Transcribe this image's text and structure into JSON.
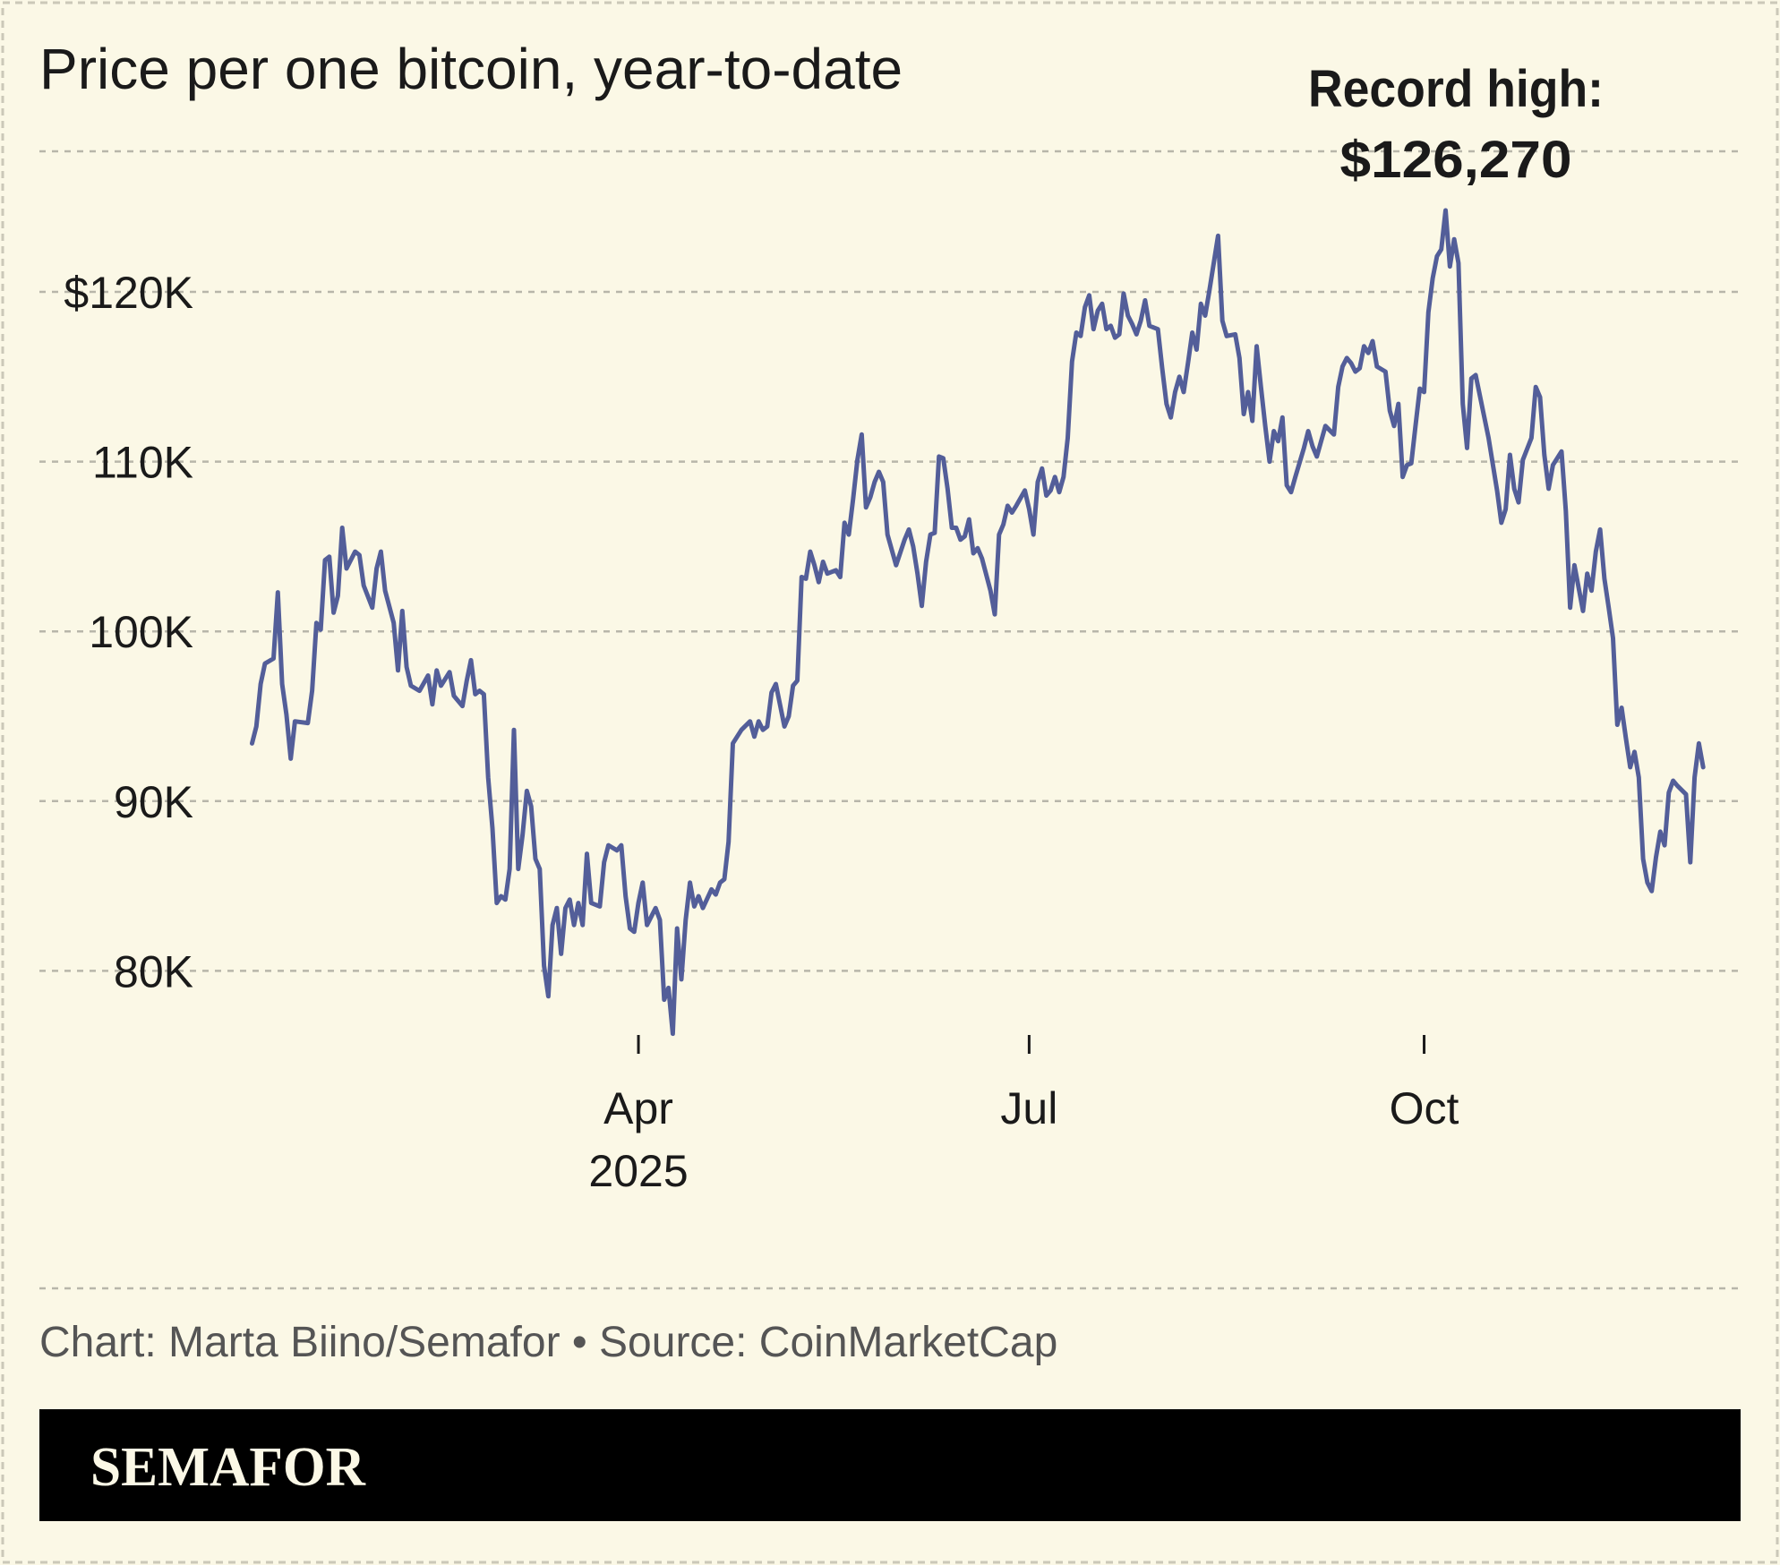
{
  "colors": {
    "background": "#fbf8e6",
    "line": "#535e99",
    "banner": "#000000",
    "logo_text": "#fbf8e6"
  },
  "footer": {
    "source": "Chart: Marta Biino/Semafor • Source: CoinMarketCap",
    "logo": "SEMAFOR"
  },
  "chart_data": {
    "type": "line",
    "title": "Price per one bitcoin, year-to-date",
    "annotation": {
      "line1": "Record high:",
      "line2": "$126,270",
      "date": "2025-10-06"
    },
    "xlabel": "",
    "ylabel": "",
    "grid": true,
    "ylim": [
      76,
      128
    ],
    "y_ticks": [
      {
        "value": 120,
        "label": "$120K"
      },
      {
        "value": 110,
        "label": "110K"
      },
      {
        "value": 100,
        "label": "100K"
      },
      {
        "value": 90,
        "label": "90K"
      },
      {
        "value": 80,
        "label": "80K"
      }
    ],
    "x_ticks": [
      {
        "date": "2025-04-01",
        "label": "Apr",
        "sublabel": "2025"
      },
      {
        "date": "2025-07-01",
        "label": "Jul",
        "sublabel": ""
      },
      {
        "date": "2025-10-01",
        "label": "Oct",
        "sublabel": ""
      }
    ],
    "unit": "thousand USD",
    "points": [
      [
        "2025-01-01",
        93.4
      ],
      [
        "2025-01-02",
        94.4
      ],
      [
        "2025-01-03",
        96.9
      ],
      [
        "2025-01-04",
        98.1
      ],
      [
        "2025-01-06",
        98.4
      ],
      [
        "2025-01-07",
        102.3
      ],
      [
        "2025-01-08",
        96.9
      ],
      [
        "2025-01-09",
        95.1
      ],
      [
        "2025-01-10",
        92.5
      ],
      [
        "2025-01-11",
        94.7
      ],
      [
        "2025-01-14",
        94.6
      ],
      [
        "2025-01-15",
        96.5
      ],
      [
        "2025-01-16",
        100.5
      ],
      [
        "2025-01-17",
        100.1
      ],
      [
        "2025-01-18",
        104.2
      ],
      [
        "2025-01-19",
        104.4
      ],
      [
        "2025-01-20",
        101.1
      ],
      [
        "2025-01-21",
        102.1
      ],
      [
        "2025-01-22",
        106.1
      ],
      [
        "2025-01-23",
        103.7
      ],
      [
        "2025-01-25",
        104.7
      ],
      [
        "2025-01-26",
        104.5
      ],
      [
        "2025-01-27",
        102.7
      ],
      [
        "2025-01-29",
        101.4
      ],
      [
        "2025-01-30",
        103.7
      ],
      [
        "2025-01-31",
        104.7
      ],
      [
        "2025-02-01",
        102.4
      ],
      [
        "2025-02-03",
        100.5
      ],
      [
        "2025-02-04",
        97.7
      ],
      [
        "2025-02-05",
        101.2
      ],
      [
        "2025-02-06",
        97.9
      ],
      [
        "2025-02-07",
        96.8
      ],
      [
        "2025-02-09",
        96.5
      ],
      [
        "2025-02-11",
        97.4
      ],
      [
        "2025-02-12",
        95.7
      ],
      [
        "2025-02-13",
        97.7
      ],
      [
        "2025-02-14",
        96.8
      ],
      [
        "2025-02-16",
        97.6
      ],
      [
        "2025-02-17",
        96.2
      ],
      [
        "2025-02-19",
        95.6
      ],
      [
        "2025-02-20",
        97.1
      ],
      [
        "2025-02-21",
        98.3
      ],
      [
        "2025-02-22",
        96.3
      ],
      [
        "2025-02-23",
        96.5
      ],
      [
        "2025-02-24",
        96.3
      ],
      [
        "2025-02-25",
        91.4
      ],
      [
        "2025-02-26",
        88.4
      ],
      [
        "2025-02-27",
        84.0
      ],
      [
        "2025-02-28",
        84.4
      ],
      [
        "2025-03-01",
        84.2
      ],
      [
        "2025-03-02",
        86.0
      ],
      [
        "2025-03-03",
        94.2
      ],
      [
        "2025-03-04",
        86.0
      ],
      [
        "2025-03-05",
        88.0
      ],
      [
        "2025-03-06",
        90.6
      ],
      [
        "2025-03-07",
        89.7
      ],
      [
        "2025-03-08",
        86.6
      ],
      [
        "2025-03-09",
        86.0
      ],
      [
        "2025-03-10",
        80.3
      ],
      [
        "2025-03-11",
        78.5
      ],
      [
        "2025-03-12",
        82.7
      ],
      [
        "2025-03-13",
        83.7
      ],
      [
        "2025-03-14",
        81.0
      ],
      [
        "2025-03-15",
        83.7
      ],
      [
        "2025-03-16",
        84.2
      ],
      [
        "2025-03-17",
        82.7
      ],
      [
        "2025-03-18",
        84.0
      ],
      [
        "2025-03-19",
        82.7
      ],
      [
        "2025-03-20",
        86.9
      ],
      [
        "2025-03-21",
        84.0
      ],
      [
        "2025-03-23",
        83.8
      ],
      [
        "2025-03-24",
        86.4
      ],
      [
        "2025-03-25",
        87.4
      ],
      [
        "2025-03-27",
        87.1
      ],
      [
        "2025-03-28",
        87.4
      ],
      [
        "2025-03-29",
        84.4
      ],
      [
        "2025-03-30",
        82.5
      ],
      [
        "2025-03-31",
        82.3
      ],
      [
        "2025-04-01",
        84.0
      ],
      [
        "2025-04-02",
        85.2
      ],
      [
        "2025-04-03",
        82.7
      ],
      [
        "2025-04-05",
        83.7
      ],
      [
        "2025-04-06",
        83.0
      ],
      [
        "2025-04-07",
        78.3
      ],
      [
        "2025-04-08",
        79.0
      ],
      [
        "2025-04-09",
        76.3
      ],
      [
        "2025-04-10",
        82.5
      ],
      [
        "2025-04-11",
        79.5
      ],
      [
        "2025-04-12",
        83.0
      ],
      [
        "2025-04-13",
        85.2
      ],
      [
        "2025-04-14",
        83.8
      ],
      [
        "2025-04-15",
        84.4
      ],
      [
        "2025-04-16",
        83.7
      ],
      [
        "2025-04-18",
        84.8
      ],
      [
        "2025-04-19",
        84.5
      ],
      [
        "2025-04-20",
        85.2
      ],
      [
        "2025-04-21",
        85.4
      ],
      [
        "2025-04-22",
        87.6
      ],
      [
        "2025-04-23",
        93.4
      ],
      [
        "2025-04-25",
        94.2
      ],
      [
        "2025-04-27",
        94.7
      ],
      [
        "2025-04-28",
        93.8
      ],
      [
        "2025-04-29",
        94.7
      ],
      [
        "2025-04-30",
        94.2
      ],
      [
        "2025-05-01",
        94.4
      ],
      [
        "2025-05-02",
        96.4
      ],
      [
        "2025-05-03",
        96.9
      ],
      [
        "2025-05-05",
        94.4
      ],
      [
        "2025-05-06",
        95.0
      ],
      [
        "2025-05-07",
        96.8
      ],
      [
        "2025-05-08",
        97.1
      ],
      [
        "2025-05-09",
        103.2
      ],
      [
        "2025-05-10",
        103.1
      ],
      [
        "2025-05-11",
        104.7
      ],
      [
        "2025-05-12",
        103.9
      ],
      [
        "2025-05-13",
        102.9
      ],
      [
        "2025-05-14",
        104.1
      ],
      [
        "2025-05-15",
        103.4
      ],
      [
        "2025-05-17",
        103.6
      ],
      [
        "2025-05-18",
        103.2
      ],
      [
        "2025-05-19",
        106.4
      ],
      [
        "2025-05-20",
        105.7
      ],
      [
        "2025-05-21",
        107.8
      ],
      [
        "2025-05-22",
        110.1
      ],
      [
        "2025-05-23",
        111.6
      ],
      [
        "2025-05-24",
        107.3
      ],
      [
        "2025-05-25",
        107.9
      ],
      [
        "2025-05-26",
        108.8
      ],
      [
        "2025-05-27",
        109.4
      ],
      [
        "2025-05-28",
        108.8
      ],
      [
        "2025-05-29",
        105.7
      ],
      [
        "2025-05-31",
        103.9
      ],
      [
        "2025-06-02",
        105.4
      ],
      [
        "2025-06-03",
        106.0
      ],
      [
        "2025-06-04",
        105.0
      ],
      [
        "2025-06-05",
        103.4
      ],
      [
        "2025-06-06",
        101.5
      ],
      [
        "2025-06-07",
        104.1
      ],
      [
        "2025-06-08",
        105.7
      ],
      [
        "2025-06-09",
        105.8
      ],
      [
        "2025-06-10",
        110.3
      ],
      [
        "2025-06-11",
        110.2
      ],
      [
        "2025-06-12",
        108.4
      ],
      [
        "2025-06-13",
        106.1
      ],
      [
        "2025-06-14",
        106.1
      ],
      [
        "2025-06-15",
        105.4
      ],
      [
        "2025-06-16",
        105.6
      ],
      [
        "2025-06-17",
        106.6
      ],
      [
        "2025-06-18",
        104.6
      ],
      [
        "2025-06-19",
        104.9
      ],
      [
        "2025-06-20",
        104.3
      ],
      [
        "2025-06-22",
        102.4
      ],
      [
        "2025-06-23",
        101.0
      ],
      [
        "2025-06-24",
        105.7
      ],
      [
        "2025-06-25",
        106.3
      ],
      [
        "2025-06-26",
        107.4
      ],
      [
        "2025-06-27",
        107.0
      ],
      [
        "2025-06-28",
        107.4
      ],
      [
        "2025-06-30",
        108.3
      ],
      [
        "2025-07-01",
        107.2
      ],
      [
        "2025-07-02",
        105.7
      ],
      [
        "2025-07-03",
        108.8
      ],
      [
        "2025-07-04",
        109.6
      ],
      [
        "2025-07-05",
        108.0
      ],
      [
        "2025-07-06",
        108.3
      ],
      [
        "2025-07-07",
        109.1
      ],
      [
        "2025-07-08",
        108.2
      ],
      [
        "2025-07-09",
        109.1
      ],
      [
        "2025-07-10",
        111.4
      ],
      [
        "2025-07-11",
        115.9
      ],
      [
        "2025-07-12",
        117.6
      ],
      [
        "2025-07-13",
        117.4
      ],
      [
        "2025-07-14",
        119.1
      ],
      [
        "2025-07-15",
        119.8
      ],
      [
        "2025-07-16",
        117.8
      ],
      [
        "2025-07-17",
        118.9
      ],
      [
        "2025-07-18",
        119.3
      ],
      [
        "2025-07-19",
        117.8
      ],
      [
        "2025-07-20",
        118.0
      ],
      [
        "2025-07-21",
        117.3
      ],
      [
        "2025-07-22",
        117.5
      ],
      [
        "2025-07-23",
        119.9
      ],
      [
        "2025-07-24",
        118.6
      ],
      [
        "2025-07-25",
        118.1
      ],
      [
        "2025-07-26",
        117.5
      ],
      [
        "2025-07-27",
        118.3
      ],
      [
        "2025-07-28",
        119.5
      ],
      [
        "2025-07-29",
        118.0
      ],
      [
        "2025-07-31",
        117.8
      ],
      [
        "2025-08-01",
        115.5
      ],
      [
        "2025-08-02",
        113.4
      ],
      [
        "2025-08-03",
        112.6
      ],
      [
        "2025-08-04",
        114.1
      ],
      [
        "2025-08-05",
        115.0
      ],
      [
        "2025-08-06",
        114.1
      ],
      [
        "2025-08-07",
        115.8
      ],
      [
        "2025-08-08",
        117.6
      ],
      [
        "2025-08-09",
        116.6
      ],
      [
        "2025-08-10",
        119.3
      ],
      [
        "2025-08-11",
        118.6
      ],
      [
        "2025-08-12",
        120.1
      ],
      [
        "2025-08-14",
        123.3
      ],
      [
        "2025-08-15",
        118.3
      ],
      [
        "2025-08-16",
        117.4
      ],
      [
        "2025-08-18",
        117.5
      ],
      [
        "2025-08-19",
        116.1
      ],
      [
        "2025-08-20",
        112.8
      ],
      [
        "2025-08-21",
        114.1
      ],
      [
        "2025-08-22",
        112.4
      ],
      [
        "2025-08-23",
        116.8
      ],
      [
        "2025-08-24",
        114.4
      ],
      [
        "2025-08-25",
        112.1
      ],
      [
        "2025-08-26",
        110.0
      ],
      [
        "2025-08-27",
        111.8
      ],
      [
        "2025-08-28",
        111.2
      ],
      [
        "2025-08-29",
        112.6
      ],
      [
        "2025-08-30",
        108.6
      ],
      [
        "2025-08-31",
        108.2
      ],
      [
        "2025-09-01",
        109.1
      ],
      [
        "2025-09-03",
        110.8
      ],
      [
        "2025-09-04",
        111.8
      ],
      [
        "2025-09-05",
        110.9
      ],
      [
        "2025-09-06",
        110.3
      ],
      [
        "2025-09-08",
        112.1
      ],
      [
        "2025-09-10",
        111.6
      ],
      [
        "2025-09-11",
        114.4
      ],
      [
        "2025-09-12",
        115.6
      ],
      [
        "2025-09-13",
        116.1
      ],
      [
        "2025-09-14",
        115.8
      ],
      [
        "2025-09-15",
        115.3
      ],
      [
        "2025-09-16",
        115.5
      ],
      [
        "2025-09-17",
        116.8
      ],
      [
        "2025-09-18",
        116.4
      ],
      [
        "2025-09-19",
        117.1
      ],
      [
        "2025-09-20",
        115.6
      ],
      [
        "2025-09-22",
        115.3
      ],
      [
        "2025-09-23",
        113.0
      ],
      [
        "2025-09-24",
        112.1
      ],
      [
        "2025-09-25",
        113.4
      ],
      [
        "2025-09-26",
        109.1
      ],
      [
        "2025-09-27",
        109.8
      ],
      [
        "2025-09-28",
        109.9
      ],
      [
        "2025-09-29",
        112.1
      ],
      [
        "2025-09-30",
        114.3
      ],
      [
        "2025-10-01",
        114.1
      ],
      [
        "2025-10-02",
        118.8
      ],
      [
        "2025-10-03",
        120.8
      ],
      [
        "2025-10-04",
        122.1
      ],
      [
        "2025-10-05",
        122.5
      ],
      [
        "2025-10-06",
        124.8
      ],
      [
        "2025-10-07",
        121.5
      ],
      [
        "2025-10-08",
        123.1
      ],
      [
        "2025-10-09",
        121.7
      ],
      [
        "2025-10-10",
        113.4
      ],
      [
        "2025-10-11",
        110.8
      ],
      [
        "2025-10-12",
        114.9
      ],
      [
        "2025-10-13",
        115.1
      ],
      [
        "2025-10-16",
        111.4
      ],
      [
        "2025-10-18",
        108.3
      ],
      [
        "2025-10-19",
        106.4
      ],
      [
        "2025-10-20",
        107.2
      ],
      [
        "2025-10-21",
        110.4
      ],
      [
        "2025-10-22",
        108.4
      ],
      [
        "2025-10-23",
        107.6
      ],
      [
        "2025-10-24",
        110.1
      ],
      [
        "2025-10-26",
        111.4
      ],
      [
        "2025-10-27",
        114.4
      ],
      [
        "2025-10-28",
        113.8
      ],
      [
        "2025-10-29",
        110.4
      ],
      [
        "2025-10-30",
        108.4
      ],
      [
        "2025-10-31",
        109.8
      ],
      [
        "2025-11-02",
        110.6
      ],
      [
        "2025-11-03",
        107.1
      ],
      [
        "2025-11-04",
        101.4
      ],
      [
        "2025-11-05",
        103.9
      ],
      [
        "2025-11-07",
        101.2
      ],
      [
        "2025-11-08",
        103.4
      ],
      [
        "2025-11-09",
        102.4
      ],
      [
        "2025-11-10",
        104.7
      ],
      [
        "2025-11-11",
        106.0
      ],
      [
        "2025-11-12",
        103.1
      ],
      [
        "2025-11-13",
        101.4
      ],
      [
        "2025-11-14",
        99.6
      ],
      [
        "2025-11-15",
        94.5
      ],
      [
        "2025-11-16",
        95.5
      ],
      [
        "2025-11-17",
        93.7
      ],
      [
        "2025-11-18",
        92.0
      ],
      [
        "2025-11-19",
        92.9
      ],
      [
        "2025-11-20",
        91.4
      ],
      [
        "2025-11-21",
        86.6
      ],
      [
        "2025-11-22",
        85.2
      ],
      [
        "2025-11-23",
        84.7
      ],
      [
        "2025-11-24",
        86.7
      ],
      [
        "2025-11-25",
        88.2
      ],
      [
        "2025-11-26",
        87.4
      ],
      [
        "2025-11-27",
        90.5
      ],
      [
        "2025-11-28",
        91.2
      ],
      [
        "2025-11-29",
        90.9
      ],
      [
        "2025-12-01",
        90.4
      ],
      [
        "2025-12-02",
        86.4
      ],
      [
        "2025-12-03",
        91.4
      ],
      [
        "2025-12-04",
        93.4
      ],
      [
        "2025-12-05",
        92.0
      ]
    ]
  }
}
